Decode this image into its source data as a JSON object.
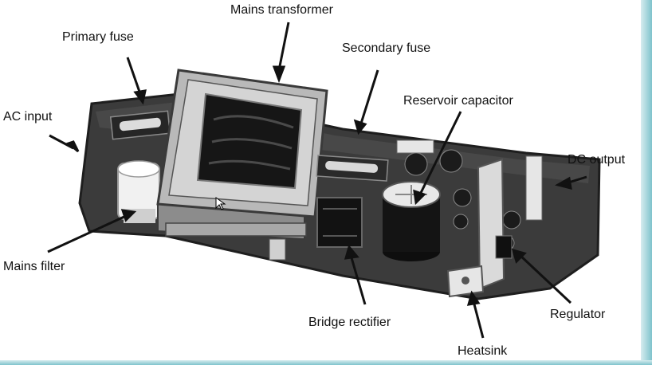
{
  "labels": {
    "mains_transformer": "Mains transformer",
    "primary_fuse": "Primary fuse",
    "secondary_fuse": "Secondary fuse",
    "reservoir_capacitor": "Reservoir capacitor",
    "ac_input": "AC input",
    "dc_output": "DC output",
    "mains_filter": "Mains filter",
    "bridge_rectifier": "Bridge rectifier",
    "regulator": "Regulator",
    "heatsink": "Heatsink"
  },
  "colors": {
    "board": "#3a3a3a",
    "board_edge": "#1e1e1e",
    "component_light": "#e8e8e8",
    "component_dark": "#151515",
    "arrow": "#111111",
    "frame_accent": "#7fc3cc"
  }
}
